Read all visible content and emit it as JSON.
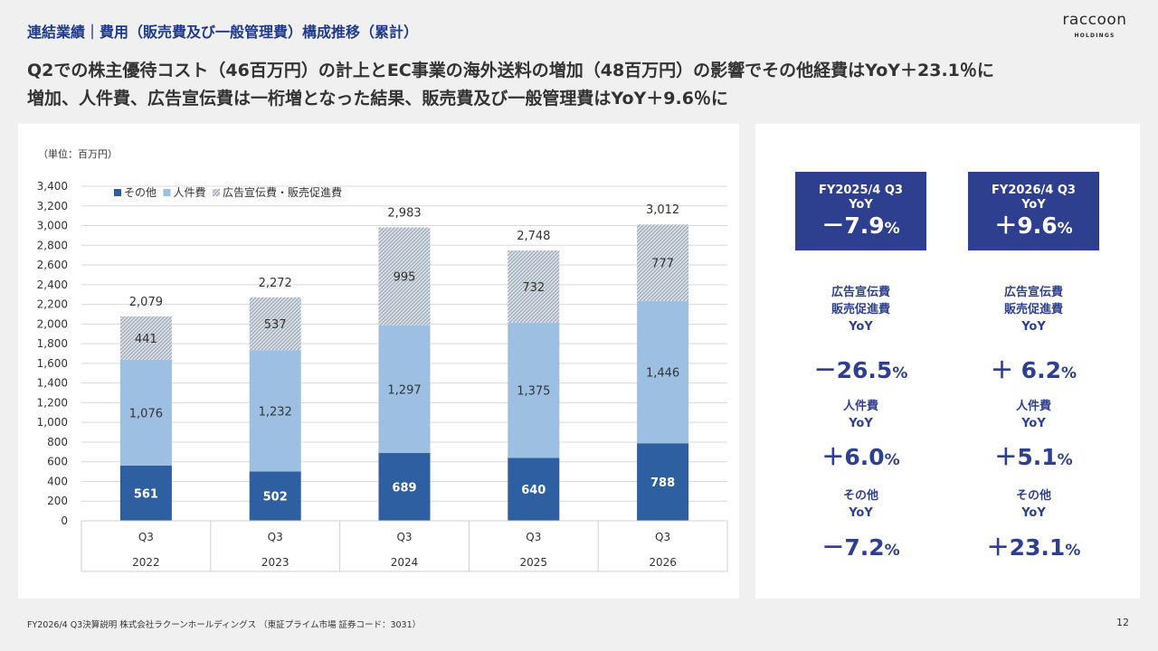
{
  "header": {
    "section_title": "連結業績｜費用（販売費及び一般管理費）構成推移（累計）",
    "headline_line1": "Q2での株主優待コスト（46百万円）の計上とEC事業の海外送料の増加（48百万円）の影響でその他経費はYoY＋23.1％に",
    "headline_line2": "増加、人件費、広告宣伝費は一桁増となった結果、販売費及び一般管理費はYoY＋9.6％に"
  },
  "logo": {
    "text": "raccoon",
    "sub": "HOLDINGS"
  },
  "chart_data": {
    "type": "bar",
    "stacked": true,
    "unit_label": "（単位：百万円）",
    "categories": [
      "Q3",
      "Q3",
      "Q3",
      "Q3",
      "Q3"
    ],
    "years": [
      "2022",
      "2023",
      "2024",
      "2025",
      "2026"
    ],
    "series": [
      {
        "name": "その他",
        "values": [
          561,
          502,
          689,
          640,
          788
        ],
        "color": "#2e5fa1"
      },
      {
        "name": "人件費",
        "values": [
          1076,
          1232,
          1297,
          1375,
          1446
        ],
        "color": "#9dbfe2"
      },
      {
        "name": "広告宣伝費・販売促進費",
        "values": [
          441,
          537,
          995,
          732,
          777
        ],
        "color": "#c8d2dc",
        "pattern": "hatched"
      }
    ],
    "totals": [
      2079,
      2272,
      2983,
      2748,
      3012
    ],
    "ylim": [
      0,
      3400
    ],
    "ytick_step": 200,
    "grid": true,
    "legend": "top-left"
  },
  "kpi": {
    "box1": {
      "title": "FY2025/4 Q3",
      "yoy": "YoY",
      "value": "－7.9",
      "pct": "%"
    },
    "box2": {
      "title": "FY2026/4 Q3",
      "yoy": "YoY",
      "value": "＋9.6",
      "pct": "%"
    }
  },
  "breakdown": {
    "ad": {
      "l1": "広告宣伝費",
      "l2": "販売促進費",
      "l3": "YoY",
      "v2025": "－26.5",
      "v2026": "＋ 6.2"
    },
    "labor": {
      "l1": "人件費",
      "l2": "YoY",
      "v2025": "＋6.0",
      "v2026": "＋5.1"
    },
    "other": {
      "l1": "その他",
      "l2": "YoY",
      "v2025": "－7.2",
      "v2026": "＋23.1"
    },
    "pct": "%"
  },
  "footer": {
    "text": "FY2026/4 Q3決算説明 株式会社ラクーンホールディングス （東証プライム市場 証券コード：3031）",
    "page": "12"
  }
}
